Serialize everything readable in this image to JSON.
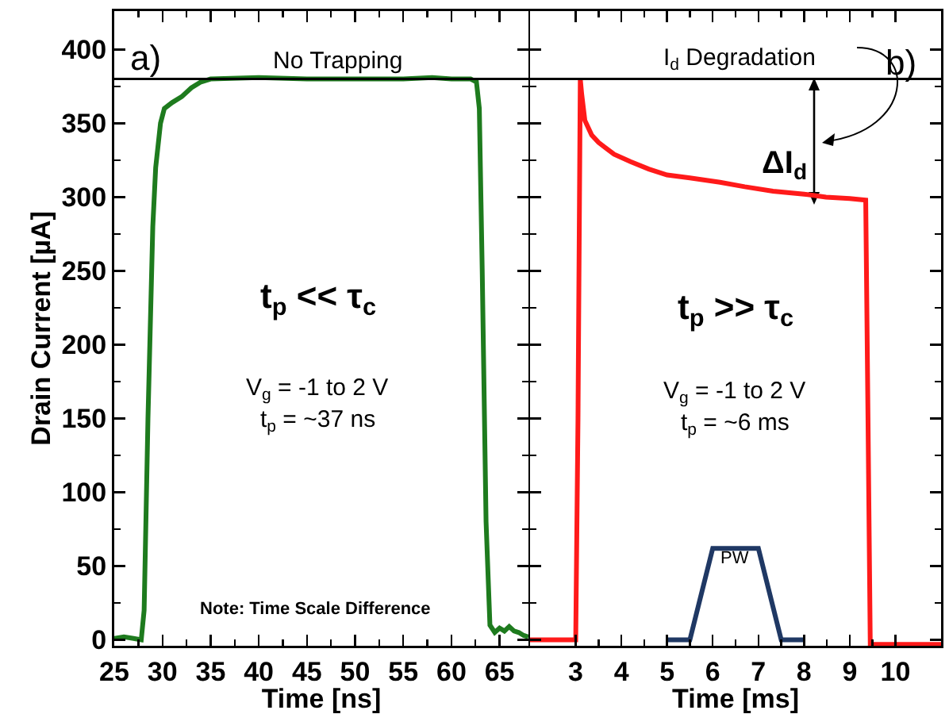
{
  "chart_data": [
    {
      "type": "line",
      "ylabel": "Drain Current [µA]",
      "xlabel": "Time [ns]",
      "xlim": [
        25,
        68
      ],
      "xticks": [
        25,
        30,
        35,
        40,
        45,
        50,
        55,
        60,
        65
      ],
      "ylim": [
        -4,
        426
      ],
      "yticks": [
        0,
        50,
        100,
        150,
        200,
        250,
        300,
        350,
        400
      ],
      "grid": false,
      "series": [
        {
          "color": "#1e7b1e",
          "x": [
            25,
            26,
            27,
            27.8,
            28.1,
            28.5,
            29,
            29.3,
            29.8,
            30.2,
            31,
            32,
            33,
            34,
            35,
            40,
            45,
            50,
            55,
            58,
            60,
            62,
            62.6,
            62.9,
            63.2,
            63.6,
            64,
            64.5,
            65,
            65.5,
            66,
            66.5,
            67,
            67.5,
            68
          ],
          "values": [
            1,
            2,
            1,
            0,
            20,
            150,
            280,
            320,
            350,
            360,
            364,
            368,
            374,
            378,
            380,
            381,
            380,
            380,
            380,
            381,
            380,
            380,
            378,
            360,
            250,
            80,
            10,
            5,
            8,
            6,
            9,
            6,
            5,
            3,
            2
          ]
        }
      ],
      "ref_lines": [
        {
          "axis": "y",
          "value": 380,
          "label": "No Trapping",
          "color": "#000000"
        }
      ],
      "annotations": [
        "a)",
        "t$_{p}$ << τ$_{c}$",
        "V$_{g}$ = -1 to 2 V",
        "t$_{p}$ = ~37 ns",
        "Note: Time Scale Difference"
      ]
    },
    {
      "type": "line",
      "xlabel": "Time [ms]",
      "xlim": [
        2,
        11
      ],
      "xticks": [
        3,
        4,
        5,
        6,
        7,
        8,
        9,
        10
      ],
      "ylim": [
        -4,
        426
      ],
      "yticks": [
        0,
        50,
        100,
        150,
        200,
        250,
        300,
        350,
        400
      ],
      "tick_labels": "x",
      "grid": false,
      "series": [
        {
          "color": "#ff1a1a",
          "x": [
            2,
            2.5,
            3.0,
            3.05,
            3.1,
            3.13,
            3.2,
            3.35,
            3.5,
            3.84,
            4.2,
            4.6,
            5.0,
            5.5,
            6.16,
            6.7,
            7.32,
            8,
            8.48,
            9,
            9.35,
            9.4,
            9.45,
            10,
            10.5,
            11
          ],
          "values": [
            0,
            0,
            0,
            150,
            380,
            370,
            352,
            342,
            337,
            329,
            324,
            319,
            315,
            313,
            310,
            307,
            304,
            302,
            300,
            299,
            298,
            150,
            -3,
            -3,
            -3,
            -3
          ]
        },
        {
          "color": "#1f3864",
          "x": [
            5,
            5.5,
            6,
            7,
            7.5,
            8
          ],
          "values": [
            0,
            0,
            62,
            62,
            0,
            0
          ]
        }
      ],
      "ref_lines": [
        {
          "axis": "y",
          "value": 380,
          "label": "I$_{d}$ Degradation",
          "color": "#000000"
        }
      ],
      "annotations": [
        "b)",
        "t$_{p}$ >> τ$_{c}$",
        "V$_{g}$ = -1 to 2 V",
        "t$_{p}$ = ~6 ms",
        "ΔI$_{d}$",
        "PW"
      ]
    }
  ]
}
